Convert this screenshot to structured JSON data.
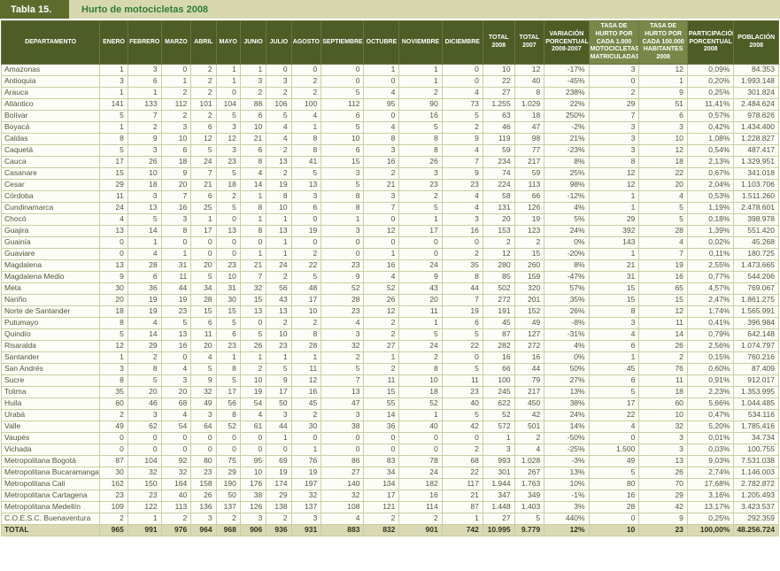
{
  "title": {
    "label": "Tabla 15.",
    "text": "Hurto de motocicletas 2008"
  },
  "colors": {
    "header_bg": "#4e5c26",
    "header_light_bg": "#7a8749",
    "title_label_bg": "#5d6b2d",
    "title_strip_bg": "#d8d8b0",
    "title_text_color": "#2e7d32",
    "total_row_bg": "#d9d9b5",
    "grid_line": "#c9cfa0"
  },
  "table": {
    "headers": [
      "DEPARTAMENTO",
      "ENERO",
      "FEBRERO",
      "MARZO",
      "ABRIL",
      "MAYO",
      "JUNIO",
      "JULIO",
      "AGOSTO",
      "SEPTIEMBRE",
      "OCTUBRE",
      "NOVIEMBRE",
      "DICIEMBRE",
      "TOTAL 2008",
      "TOTAL 2007",
      "VARIACIÓN PORCENTUAL 2008-2007",
      "TASA DE HURTO POR CADA 1.000 MOTOCICLETAS MATRICULADAS",
      "TASA DE HURTO POR CADA 100.000 HABITANTES 2008",
      "PARTICIPACIÓN PORCENTUAL 2008",
      "POBLACIÓN 2008"
    ],
    "light_header_columns": [
      16,
      17
    ],
    "rows": [
      [
        "Amazonas",
        "1",
        "3",
        "0",
        "2",
        "1",
        "1",
        "0",
        "0",
        "0",
        "1",
        "1",
        "0",
        "10",
        "12",
        "-17%",
        "3",
        "12",
        "0,09%",
        "84.353"
      ],
      [
        "Antioquia",
        "3",
        "6",
        "1",
        "2",
        "1",
        "3",
        "3",
        "2",
        "0",
        "0",
        "1",
        "0",
        "22",
        "40",
        "-45%",
        "0",
        "1",
        "0,20%",
        "1.993.148"
      ],
      [
        "Arauca",
        "1",
        "1",
        "2",
        "2",
        "0",
        "2",
        "2",
        "2",
        "5",
        "4",
        "2",
        "4",
        "27",
        "8",
        "238%",
        "2",
        "9",
        "0,25%",
        "301.824"
      ],
      [
        "Atlántico",
        "141",
        "133",
        "112",
        "101",
        "104",
        "88",
        "106",
        "100",
        "112",
        "95",
        "90",
        "73",
        "1.255",
        "1.029",
        "22%",
        "29",
        "51",
        "11,41%",
        "2.484.624"
      ],
      [
        "Bolívar",
        "5",
        "7",
        "2",
        "2",
        "5",
        "6",
        "5",
        "4",
        "6",
        "0",
        "16",
        "5",
        "63",
        "18",
        "250%",
        "7",
        "6",
        "0,57%",
        "978.626"
      ],
      [
        "Boyacá",
        "1",
        "2",
        "3",
        "6",
        "3",
        "10",
        "4",
        "1",
        "5",
        "4",
        "5",
        "2",
        "46",
        "47",
        "-2%",
        "3",
        "3",
        "0,42%",
        "1.434.400"
      ],
      [
        "Caldas",
        "8",
        "9",
        "10",
        "12",
        "12",
        "21",
        "4",
        "8",
        "10",
        "8",
        "8",
        "9",
        "119",
        "98",
        "21%",
        "3",
        "10",
        "1,08%",
        "1.228.827"
      ],
      [
        "Caquetá",
        "5",
        "3",
        "6",
        "5",
        "3",
        "6",
        "2",
        "8",
        "6",
        "3",
        "8",
        "4",
        "59",
        "77",
        "-23%",
        "3",
        "12",
        "0,54%",
        "487.417"
      ],
      [
        "Cauca",
        "17",
        "26",
        "18",
        "24",
        "23",
        "8",
        "13",
        "41",
        "15",
        "16",
        "26",
        "7",
        "234",
        "217",
        "8%",
        "8",
        "18",
        "2,13%",
        "1.329.951"
      ],
      [
        "Casanare",
        "15",
        "10",
        "9",
        "7",
        "5",
        "4",
        "2",
        "5",
        "3",
        "2",
        "3",
        "9",
        "74",
        "59",
        "25%",
        "12",
        "22",
        "0,67%",
        "341.018"
      ],
      [
        "Cesar",
        "29",
        "18",
        "20",
        "21",
        "18",
        "14",
        "19",
        "13",
        "5",
        "21",
        "23",
        "23",
        "224",
        "113",
        "98%",
        "12",
        "20",
        "2,04%",
        "1.103.706"
      ],
      [
        "Córdoba",
        "11",
        "3",
        "7",
        "6",
        "2",
        "1",
        "8",
        "3",
        "8",
        "3",
        "2",
        "4",
        "58",
        "66",
        "-12%",
        "1",
        "4",
        "0,53%",
        "1.511.260"
      ],
      [
        "Cundinamarca",
        "24",
        "13",
        "16",
        "25",
        "5",
        "8",
        "10",
        "6",
        "8",
        "7",
        "5",
        "4",
        "131",
        "126",
        "4%",
        "1",
        "5",
        "1,19%",
        "2.478.601"
      ],
      [
        "Chocó",
        "4",
        "5",
        "3",
        "1",
        "0",
        "1",
        "1",
        "0",
        "1",
        "0",
        "1",
        "3",
        "20",
        "19",
        "5%",
        "29",
        "5",
        "0,18%",
        "398.978"
      ],
      [
        "Guajira",
        "13",
        "14",
        "8",
        "17",
        "13",
        "8",
        "13",
        "19",
        "3",
        "12",
        "17",
        "16",
        "153",
        "123",
        "24%",
        "392",
        "28",
        "1,39%",
        "551.420"
      ],
      [
        "Guainía",
        "0",
        "1",
        "0",
        "0",
        "0",
        "0",
        "1",
        "0",
        "0",
        "0",
        "0",
        "0",
        "2",
        "2",
        "0%",
        "143",
        "4",
        "0,02%",
        "45.268"
      ],
      [
        "Guaviare",
        "0",
        "4",
        "1",
        "0",
        "0",
        "1",
        "1",
        "2",
        "0",
        "1",
        "0",
        "2",
        "12",
        "15",
        "-20%",
        "1",
        "7",
        "0,11%",
        "180.725"
      ],
      [
        "Magdalena",
        "13",
        "28",
        "31",
        "20",
        "23",
        "21",
        "24",
        "22",
        "23",
        "16",
        "24",
        "35",
        "280",
        "260",
        "8%",
        "21",
        "19",
        "2,55%",
        "1.473.665"
      ],
      [
        "Magdalena Medio",
        "9",
        "6",
        "11",
        "5",
        "10",
        "7",
        "2",
        "5",
        "9",
        "4",
        "9",
        "8",
        "85",
        "159",
        "-47%",
        "31",
        "16",
        "0,77%",
        "544.206"
      ],
      [
        "Meta",
        "30",
        "36",
        "44",
        "34",
        "31",
        "32",
        "56",
        "48",
        "52",
        "52",
        "43",
        "44",
        "502",
        "320",
        "57%",
        "15",
        "65",
        "4,57%",
        "769.067"
      ],
      [
        "Nariño",
        "20",
        "19",
        "19",
        "28",
        "30",
        "15",
        "43",
        "17",
        "28",
        "26",
        "20",
        "7",
        "272",
        "201",
        "35%",
        "15",
        "15",
        "2,47%",
        "1.861.275"
      ],
      [
        "Norte de Santander",
        "18",
        "19",
        "23",
        "15",
        "15",
        "13",
        "13",
        "10",
        "23",
        "12",
        "11",
        "19",
        "191",
        "152",
        "26%",
        "8",
        "12",
        "1,74%",
        "1.565.991"
      ],
      [
        "Putumayo",
        "8",
        "4",
        "5",
        "6",
        "5",
        "0",
        "2",
        "2",
        "4",
        "2",
        "1",
        "6",
        "45",
        "49",
        "-8%",
        "3",
        "11",
        "0,41%",
        "396.984"
      ],
      [
        "Quindío",
        "5",
        "14",
        "13",
        "11",
        "6",
        "5",
        "10",
        "8",
        "3",
        "2",
        "5",
        "5",
        "87",
        "127",
        "-31%",
        "4",
        "14",
        "0,79%",
        "642.148"
      ],
      [
        "Risaralda",
        "12",
        "29",
        "16",
        "20",
        "23",
        "26",
        "23",
        "28",
        "32",
        "27",
        "24",
        "22",
        "282",
        "272",
        "4%",
        "6",
        "26",
        "2,56%",
        "1.074.797"
      ],
      [
        "Santander",
        "1",
        "2",
        "0",
        "4",
        "1",
        "1",
        "1",
        "1",
        "2",
        "1",
        "2",
        "0",
        "16",
        "16",
        "0%",
        "1",
        "2",
        "0,15%",
        "760.216"
      ],
      [
        "San Andrés",
        "3",
        "8",
        "4",
        "5",
        "8",
        "2",
        "5",
        "11",
        "5",
        "2",
        "8",
        "5",
        "66",
        "44",
        "50%",
        "45",
        "76",
        "0,60%",
        "87.409"
      ],
      [
        "Sucre",
        "8",
        "5",
        "3",
        "9",
        "5",
        "10",
        "9",
        "12",
        "7",
        "11",
        "10",
        "11",
        "100",
        "79",
        "27%",
        "6",
        "11",
        "0,91%",
        "912.017"
      ],
      [
        "Tolima",
        "35",
        "20",
        "20",
        "32",
        "17",
        "19",
        "17",
        "16",
        "13",
        "15",
        "18",
        "23",
        "245",
        "217",
        "13%",
        "5",
        "18",
        "2,23%",
        "1.353.995"
      ],
      [
        "Huila",
        "60",
        "46",
        "68",
        "49",
        "56",
        "54",
        "50",
        "45",
        "47",
        "55",
        "52",
        "40",
        "622",
        "450",
        "38%",
        "17",
        "60",
        "5,66%",
        "1.044.485"
      ],
      [
        "Urabá",
        "2",
        "3",
        "4",
        "3",
        "8",
        "4",
        "3",
        "2",
        "3",
        "14",
        "1",
        "5",
        "52",
        "42",
        "24%",
        "22",
        "10",
        "0,47%",
        "534.116"
      ],
      [
        "Valle",
        "49",
        "62",
        "54",
        "64",
        "52",
        "61",
        "44",
        "30",
        "38",
        "36",
        "40",
        "42",
        "572",
        "501",
        "14%",
        "4",
        "32",
        "5,20%",
        "1.785.416"
      ],
      [
        "Vaupés",
        "0",
        "0",
        "0",
        "0",
        "0",
        "0",
        "1",
        "0",
        "0",
        "0",
        "0",
        "0",
        "1",
        "2",
        "-50%",
        "0",
        "3",
        "0,01%",
        "34.734"
      ],
      [
        "Vichada",
        "0",
        "0",
        "0",
        "0",
        "0",
        "0",
        "0",
        "1",
        "0",
        "0",
        "0",
        "2",
        "3",
        "4",
        "-25%",
        "1.500",
        "3",
        "0,03%",
        "100.755"
      ],
      [
        "Metropolitana Bogotá",
        "87",
        "104",
        "92",
        "80",
        "75",
        "95",
        "69",
        "76",
        "86",
        "83",
        "78",
        "68",
        "993",
        "1.028",
        "-3%",
        "49",
        "13",
        "9,03%",
        "7.531.038"
      ],
      [
        "Metropolitana Bucaramanga",
        "30",
        "32",
        "32",
        "23",
        "29",
        "10",
        "19",
        "19",
        "27",
        "34",
        "24",
        "22",
        "301",
        "267",
        "13%",
        "5",
        "26",
        "2,74%",
        "1.146.003"
      ],
      [
        "Metropolitana Cali",
        "162",
        "150",
        "164",
        "158",
        "190",
        "176",
        "174",
        "197",
        "140",
        "134",
        "182",
        "117",
        "1.944",
        "1.763",
        "10%",
        "80",
        "70",
        "17,68%",
        "2.782.872"
      ],
      [
        "Metropolitana Cartagena",
        "23",
        "23",
        "40",
        "26",
        "50",
        "38",
        "29",
        "32",
        "32",
        "17",
        "16",
        "21",
        "347",
        "349",
        "-1%",
        "16",
        "29",
        "3,16%",
        "1.205.493"
      ],
      [
        "Metropolitana Medellín",
        "109",
        "122",
        "113",
        "136",
        "137",
        "126",
        "138",
        "137",
        "108",
        "121",
        "114",
        "87",
        "1.448",
        "1.403",
        "3%",
        "28",
        "42",
        "13,17%",
        "3.423.537"
      ],
      [
        "C.O.E.S.C. Buenaventura",
        "2",
        "1",
        "2",
        "3",
        "2",
        "3",
        "2",
        "3",
        "4",
        "2",
        "2",
        "1",
        "27",
        "5",
        "440%",
        "0",
        "9",
        "0,25%",
        "292.359"
      ]
    ],
    "total_row": [
      "TOTAL",
      "965",
      "991",
      "976",
      "964",
      "968",
      "906",
      "936",
      "931",
      "883",
      "832",
      "901",
      "742",
      "10.995",
      "9.779",
      "12%",
      "10",
      "23",
      "100,00%",
      "48.256.724"
    ]
  }
}
